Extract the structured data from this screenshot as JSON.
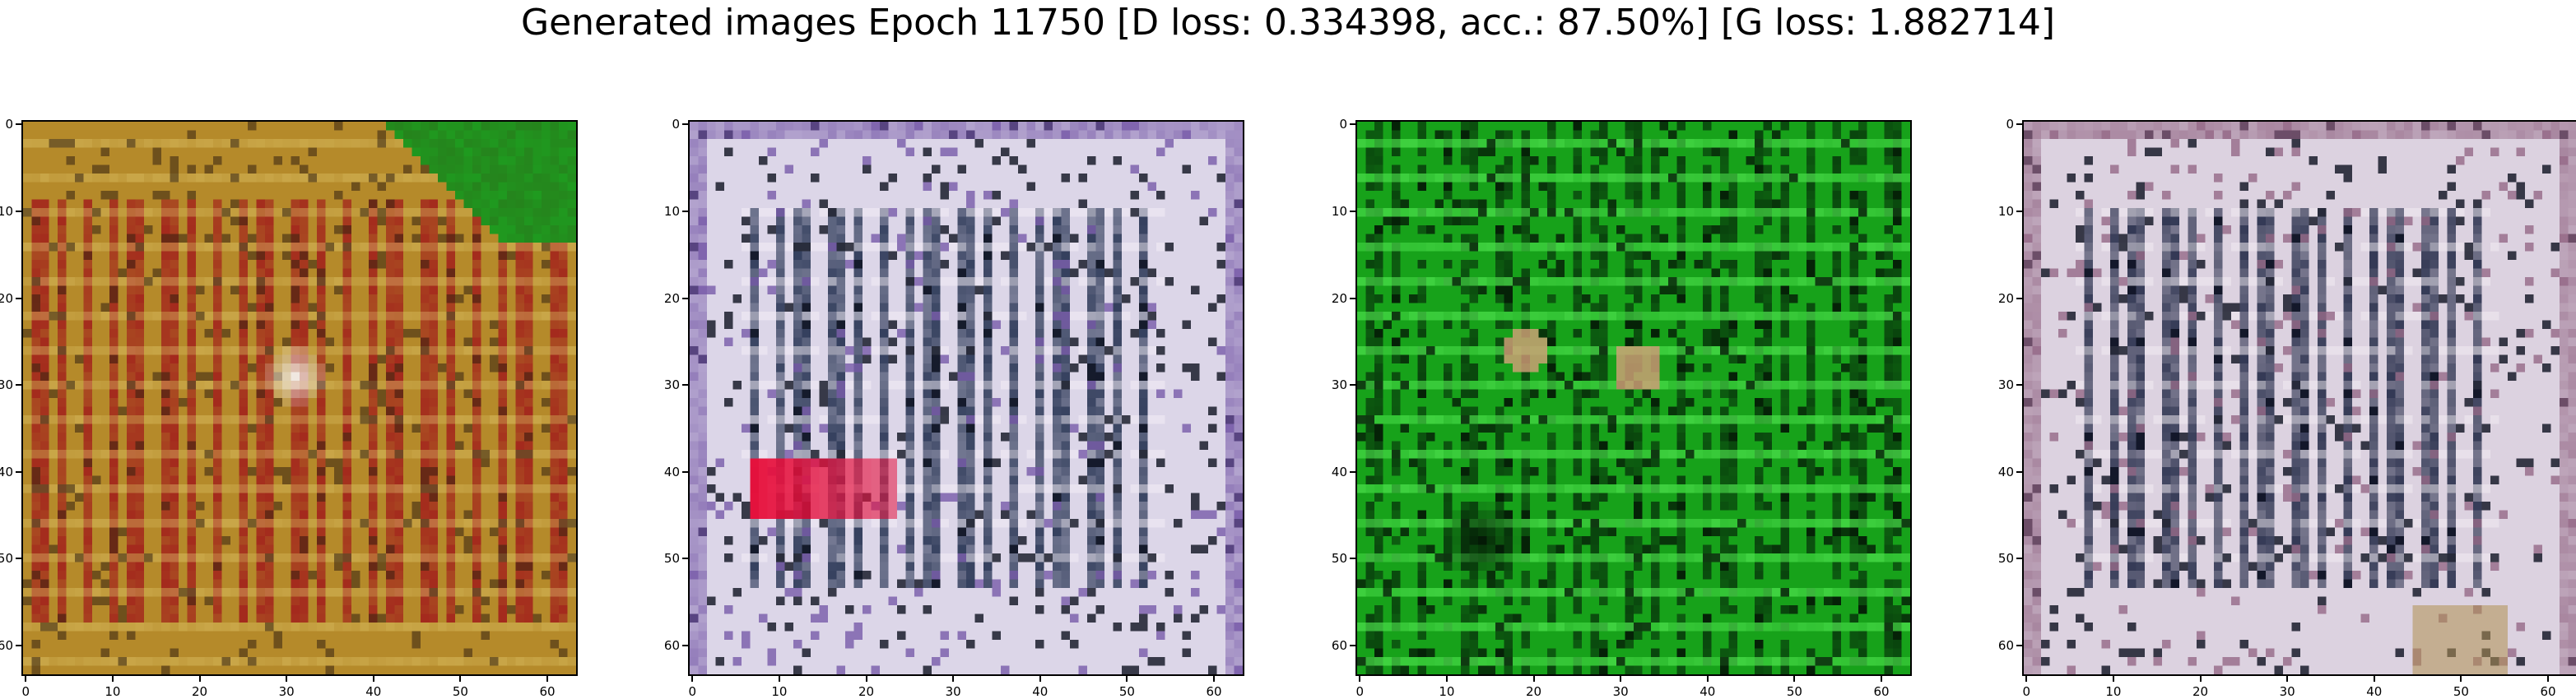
{
  "figure": {
    "title": "Generated images Epoch 11750 [D loss: 0.334398, acc.: 87.50%] [G loss: 1.882714]"
  },
  "chart_data": [
    {
      "type": "heatmap",
      "panel": 1,
      "xticks": [
        "0",
        "10",
        "20",
        "30",
        "40",
        "50",
        "60"
      ],
      "yticks": [
        "0",
        "10",
        "20",
        "30",
        "40",
        "50",
        "60"
      ],
      "xlim": [
        -0.5,
        63.5
      ],
      "ylim": [
        63.5,
        -0.5
      ],
      "grid": false,
      "colors": {
        "base": "#b58a2a",
        "stripe": "#a0141a",
        "light": "#e4cc70",
        "dark": "#3e2a12",
        "corner": "#1f9a1f",
        "spot": "#f0e8e0"
      }
    },
    {
      "type": "heatmap",
      "panel": 2,
      "xticks": [
        "0",
        "10",
        "20",
        "30",
        "40",
        "50",
        "60"
      ],
      "yticks": [
        "0",
        "10",
        "20",
        "30",
        "40",
        "50",
        "60"
      ],
      "xlim": [
        -0.5,
        63.5
      ],
      "ylim": [
        63.5,
        -0.5
      ],
      "grid": false,
      "colors": {
        "base": "#dcd6e8",
        "stripe": "#1c2a4a",
        "light": "#f6f0f8",
        "dark": "#0e1220",
        "accent": "#e8103c",
        "tint": "#6a4aa0"
      }
    },
    {
      "type": "heatmap",
      "panel": 3,
      "xticks": [
        "0",
        "10",
        "20",
        "30",
        "40",
        "50",
        "60"
      ],
      "yticks": [
        "0",
        "10",
        "20",
        "30",
        "40",
        "50",
        "60"
      ],
      "xlim": [
        -0.5,
        63.5
      ],
      "ylim": [
        63.5,
        -0.5
      ],
      "grid": false,
      "colors": {
        "base": "#17a21a",
        "stripe": "#06300a",
        "light": "#4ee44e",
        "dark": "#041a06",
        "spot": "#d6a07a"
      }
    },
    {
      "type": "heatmap",
      "panel": 4,
      "xticks": [
        "0",
        "10",
        "20",
        "30",
        "40",
        "50",
        "60"
      ],
      "yticks": [
        "0",
        "10",
        "20",
        "30",
        "40",
        "50",
        "60"
      ],
      "xlim": [
        -0.5,
        63.5
      ],
      "ylim": [
        63.5,
        -0.5
      ],
      "grid": false,
      "colors": {
        "base": "#dcd2e0",
        "stripe": "#1a2240",
        "light": "#f4eef4",
        "dark": "#0c1020",
        "accent": "#b09050",
        "tint": "#8a5a7a"
      }
    }
  ]
}
